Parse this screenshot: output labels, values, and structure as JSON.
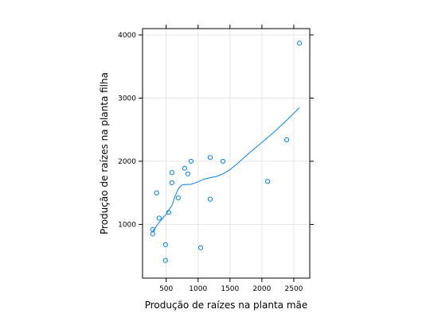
{
  "chart_data": {
    "type": "scatter",
    "xlabel": "Produção de raízes na planta mãe",
    "ylabel": "Produção de raízes na planta filha",
    "xlim": [
      130,
      2750
    ],
    "ylim": [
      150,
      4100
    ],
    "x_ticks": [
      500,
      1000,
      1500,
      2000,
      2500
    ],
    "y_ticks": [
      1000,
      2000,
      3000,
      4000
    ],
    "grid": true,
    "colors": {
      "points": "#0080ff",
      "smooth": "#0080ff",
      "grid": "#e6e6e6",
      "frame": "#000000"
    },
    "points": [
      {
        "x": 290,
        "y": 920
      },
      {
        "x": 290,
        "y": 850
      },
      {
        "x": 350,
        "y": 1500
      },
      {
        "x": 390,
        "y": 1100
      },
      {
        "x": 490,
        "y": 680
      },
      {
        "x": 490,
        "y": 430
      },
      {
        "x": 540,
        "y": 1190
      },
      {
        "x": 590,
        "y": 1820
      },
      {
        "x": 590,
        "y": 1660
      },
      {
        "x": 690,
        "y": 1420
      },
      {
        "x": 790,
        "y": 1890
      },
      {
        "x": 840,
        "y": 1800
      },
      {
        "x": 890,
        "y": 2000
      },
      {
        "x": 1040,
        "y": 630
      },
      {
        "x": 1190,
        "y": 2060
      },
      {
        "x": 1190,
        "y": 1400
      },
      {
        "x": 1390,
        "y": 2000
      },
      {
        "x": 2090,
        "y": 1680
      },
      {
        "x": 2390,
        "y": 2340
      },
      {
        "x": 2590,
        "y": 3870
      }
    ],
    "smooth": [
      {
        "x": 290,
        "y": 890
      },
      {
        "x": 390,
        "y": 1030
      },
      {
        "x": 490,
        "y": 1150
      },
      {
        "x": 590,
        "y": 1300
      },
      {
        "x": 640,
        "y": 1450
      },
      {
        "x": 690,
        "y": 1560
      },
      {
        "x": 740,
        "y": 1620
      },
      {
        "x": 790,
        "y": 1630
      },
      {
        "x": 890,
        "y": 1635
      },
      {
        "x": 990,
        "y": 1670
      },
      {
        "x": 1090,
        "y": 1715
      },
      {
        "x": 1190,
        "y": 1740
      },
      {
        "x": 1290,
        "y": 1760
      },
      {
        "x": 1390,
        "y": 1800
      },
      {
        "x": 1490,
        "y": 1860
      },
      {
        "x": 1590,
        "y": 1940
      },
      {
        "x": 1790,
        "y": 2120
      },
      {
        "x": 1990,
        "y": 2290
      },
      {
        "x": 2190,
        "y": 2460
      },
      {
        "x": 2390,
        "y": 2650
      },
      {
        "x": 2590,
        "y": 2850
      }
    ]
  }
}
